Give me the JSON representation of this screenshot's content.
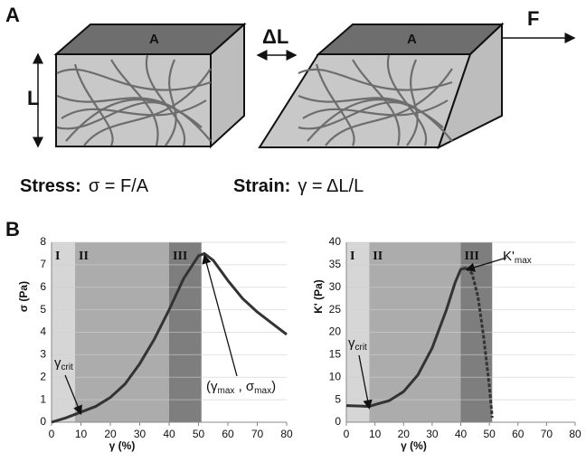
{
  "figure": {
    "panel_a": "A",
    "panel_b": "B",
    "top_face": "A",
    "length": "L",
    "delta_length": "ΔL",
    "force": "F",
    "stress_label": "Stress:",
    "stress_formula": "σ = F/A",
    "strain_label": "Strain:",
    "strain_formula": "γ = ΔL/L"
  },
  "chart_data": [
    {
      "type": "line",
      "x_label": "γ (%)",
      "y_label": "σ (Pa)",
      "x": [
        0,
        5,
        8,
        10,
        15,
        20,
        25,
        30,
        35,
        40,
        45,
        50,
        52,
        55,
        60,
        65,
        70,
        75,
        80
      ],
      "series": [
        {
          "color": "#333333",
          "values": [
            0,
            0.2,
            0.35,
            0.45,
            0.7,
            1.1,
            1.7,
            2.6,
            3.7,
            5.0,
            6.4,
            7.4,
            7.5,
            7.2,
            6.3,
            5.5,
            4.9,
            4.4,
            3.9
          ]
        }
      ],
      "xlim": [
        0,
        80
      ],
      "xticks": [
        0,
        10,
        20,
        30,
        40,
        50,
        60,
        70,
        80
      ],
      "ylim": [
        0,
        8
      ],
      "yticks": [
        0,
        1,
        2,
        3,
        4,
        5,
        6,
        7,
        8
      ],
      "grid": true,
      "regions": [
        {
          "label": "I",
          "from": 0,
          "to": 8,
          "color": "#d6d6d6"
        },
        {
          "label": "II",
          "from": 8,
          "to": 40,
          "color": "#acacac"
        },
        {
          "label": "III",
          "from": 40,
          "to": 51,
          "color": "#7e7e7e"
        }
      ],
      "annotations": [
        {
          "parts": [
            {
              "text": "γ"
            },
            {
              "text": "crit",
              "sub": true
            }
          ]
        },
        {
          "parts": [
            {
              "text": "(γ"
            },
            {
              "text": "max",
              "sub": true
            },
            {
              "text": " , σ"
            },
            {
              "text": "max",
              "sub": true
            },
            {
              "text": ")"
            }
          ]
        }
      ]
    },
    {
      "type": "line",
      "x_label": "γ (%)",
      "y_label": "K' (Pa)",
      "x": [
        0,
        5,
        8,
        10,
        15,
        20,
        25,
        30,
        35,
        38,
        40,
        42,
        44,
        46,
        48,
        50,
        51
      ],
      "series": [
        {
          "color": "#333333",
          "dashed": false,
          "values": [
            3.7,
            3.6,
            3.5,
            3.9,
            4.8,
            6.8,
            10.5,
            16.5,
            25,
            31,
            34,
            34.3,
            null,
            null,
            null,
            null,
            null
          ]
        },
        {
          "color": "#333333",
          "dashed": true,
          "values": [
            null,
            null,
            null,
            null,
            null,
            null,
            null,
            null,
            null,
            null,
            null,
            34.3,
            33,
            28,
            19,
            8,
            1
          ]
        }
      ],
      "xlim": [
        0,
        80
      ],
      "xticks": [
        0,
        10,
        20,
        30,
        40,
        50,
        60,
        70,
        80
      ],
      "ylim": [
        0,
        40
      ],
      "yticks": [
        0,
        5,
        10,
        15,
        20,
        25,
        30,
        35,
        40
      ],
      "grid": true,
      "regions": [
        {
          "label": "I",
          "from": 0,
          "to": 8,
          "color": "#d6d6d6"
        },
        {
          "label": "II",
          "from": 8,
          "to": 40,
          "color": "#acacac"
        },
        {
          "label": "III",
          "from": 40,
          "to": 51,
          "color": "#7e7e7e"
        }
      ],
      "annotations": [
        {
          "parts": [
            {
              "text": "γ"
            },
            {
              "text": "crit",
              "sub": true
            }
          ]
        },
        {
          "parts": [
            {
              "text": "K'"
            },
            {
              "text": "max",
              "sub": true
            }
          ]
        }
      ]
    }
  ]
}
